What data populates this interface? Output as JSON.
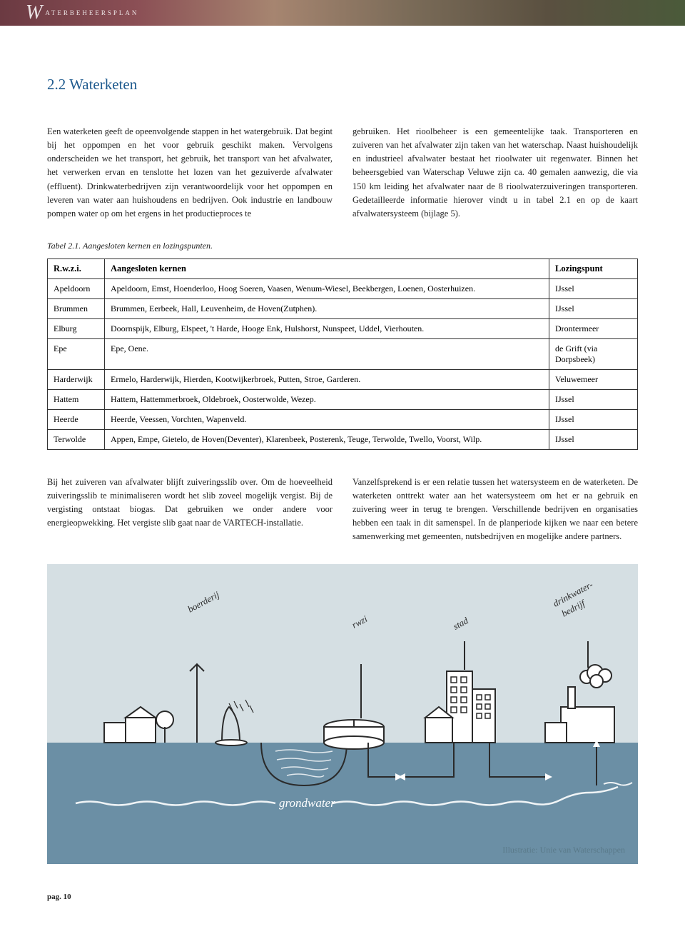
{
  "header": {
    "letter": "W",
    "text": "ATERBEHEERSPLAN"
  },
  "section_title": "2.2 Waterketen",
  "col_left": "Een waterketen geeft de opeenvolgende stappen in het watergebruik. Dat begint bij het oppompen en het voor gebruik geschikt maken. Vervolgens onderscheiden we het transport, het gebruik, het transport van het afvalwater, het verwerken ervan en tenslotte het lozen van het gezuiverde afvalwater (effluent). Drinkwaterbedrijven zijn verantwoordelijk voor het oppompen en leveren van water aan huishoudens en bedrijven. Ook industrie en landbouw pompen water op om het ergens in het productieproces te",
  "col_right": "gebruiken. Het rioolbeheer is een gemeentelijke taak. Transporteren en zuiveren van het afvalwater zijn taken van het waterschap. Naast huishoudelijk en industrieel afvalwater bestaat het rioolwater uit regenwater. Binnen het beheersgebied van Waterschap Veluwe zijn ca. 40 gemalen aanwezig, die via 150 km leiding het afvalwater naar de 8 rioolwaterzuiveringen transporteren. Gedetailleerde informatie hierover vindt u in tabel 2.1 en op de kaart afvalwatersysteem (bijlage 5).",
  "table_caption": "Tabel 2.1. Aangesloten kernen en lozingspunten.",
  "table": {
    "headers": [
      "R.w.z.i.",
      "Aangesloten kernen",
      "Lozingspunt"
    ],
    "rows": [
      [
        "Apeldoorn",
        "Apeldoorn, Emst, Hoenderloo, Hoog Soeren, Vaasen, Wenum-Wiesel, Beekbergen, Loenen, Oosterhuizen.",
        "IJssel"
      ],
      [
        "Brummen",
        "Brummen, Eerbeek, Hall, Leuvenheim, de Hoven(Zutphen).",
        "IJssel"
      ],
      [
        "Elburg",
        "Doornspijk, Elburg, Elspeet, 't Harde, Hooge Enk, Hulshorst, Nunspeet, Uddel, Vierhouten.",
        "Drontermeer"
      ],
      [
        "Epe",
        "Epe, Oene.",
        "de Grift (via Dorpsbeek)"
      ],
      [
        "Harderwijk",
        "Ermelo, Harderwijk, Hierden, Kootwijkerbroek, Putten, Stroe, Garderen.",
        "Veluwemeer"
      ],
      [
        "Hattem",
        "Hattem, Hattemmerbroek, Oldebroek, Oosterwolde, Wezep.",
        "IJssel"
      ],
      [
        "Heerde",
        "Heerde, Veessen, Vorchten, Wapenveld.",
        "IJssel"
      ],
      [
        "Terwolde",
        "Appen, Empe, Gietelo, de Hoven(Deventer), Klarenbeek, Posterenk, Teuge, Terwolde, Twello, Voorst, Wilp.",
        "IJssel"
      ]
    ]
  },
  "para_left2": "Bij het zuiveren van afvalwater blijft zuiveringsslib over. Om de hoeveelheid zuiveringsslib te minimaliseren wordt het slib zoveel mogelijk vergist. Bij de vergisting ontstaat biogas. Dat gebruiken we onder andere voor energieopwekking. Het vergiste slib gaat naar de VARTECH-installatie.",
  "para_right2": "Vanzelfsprekend is er een relatie tussen het watersysteem en de waterketen. De waterketen onttrekt water aan het watersysteem om het er na gebruik en zuivering weer in terug te brengen. Verschillende bedrijven en organisaties hebben een taak in dit samenspel. In de planperiode kijken we naar een betere samenwerking met gemeenten, nutsbedrijven en mogelijke andere partners.",
  "diagram": {
    "labels": {
      "boerderij": "boerderij",
      "rwzi": "rwzi",
      "stad": "stad",
      "drinkwater": "drinkwater-bedrijf",
      "drinkwater_l1": "drinkwater-",
      "drinkwater_l2": "bedrijf",
      "grondwater": "grondwater"
    },
    "credit": "Illustratie: Unie van Waterschappen",
    "colors": {
      "sky": "#d5dfe3",
      "ground": "#6b8fa5",
      "line": "#2a2a2a",
      "white": "#ffffff"
    }
  },
  "page_number": "pag. 10"
}
